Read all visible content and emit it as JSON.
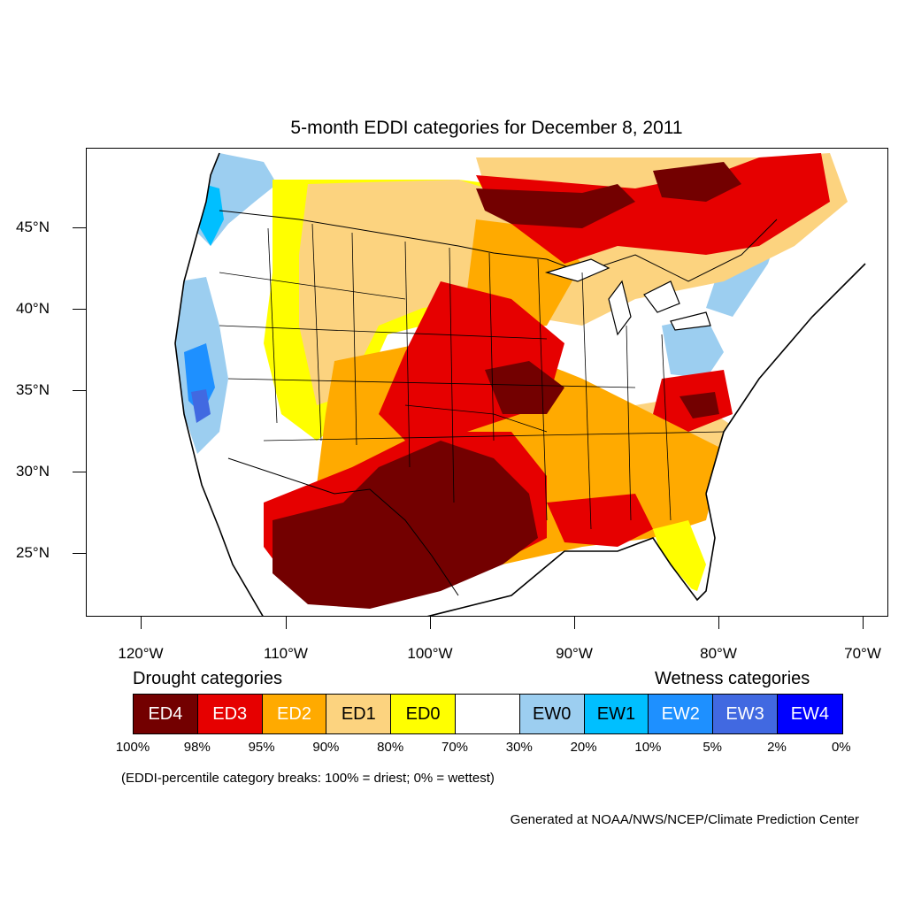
{
  "title": "5-month EDDI categories for December 8, 2011",
  "map": {
    "lat_labels": [
      "45°N",
      "40°N",
      "35°N",
      "30°N",
      "25°N"
    ],
    "lon_labels": [
      "120°W",
      "110°W",
      "100°W",
      "90°W",
      "80°W",
      "70°W"
    ]
  },
  "legend": {
    "drought_heading": "Drought categories",
    "wetness_heading": "Wetness categories",
    "categories": [
      {
        "label": "ED4",
        "color": "#730000",
        "text_color": "#ffffff"
      },
      {
        "label": "ED3",
        "color": "#e60000",
        "text_color": "#ffffff"
      },
      {
        "label": "ED2",
        "color": "#ffaa00",
        "text_color": "#ffffff"
      },
      {
        "label": "ED1",
        "color": "#fcd37f",
        "text_color": "#000000"
      },
      {
        "label": "ED0",
        "color": "#ffff00",
        "text_color": "#000000"
      },
      {
        "label": "",
        "color": "#ffffff",
        "text_color": "#000000"
      },
      {
        "label": "EW0",
        "color": "#9ccef0",
        "text_color": "#000000"
      },
      {
        "label": "EW1",
        "color": "#00bfff",
        "text_color": "#000000"
      },
      {
        "label": "EW2",
        "color": "#1e90ff",
        "text_color": "#ffffff"
      },
      {
        "label": "EW3",
        "color": "#4169e1",
        "text_color": "#ffffff"
      },
      {
        "label": "EW4",
        "color": "#0000ff",
        "text_color": "#ffffff"
      }
    ],
    "percentiles": [
      "100%",
      "98%",
      "95%",
      "90%",
      "80%",
      "70%",
      "30%",
      "20%",
      "10%",
      "5%",
      "2%",
      "0%"
    ]
  },
  "note": "(EDDI-percentile category breaks: 100% = driest; 0% = wettest)",
  "credit": "Generated at NOAA/NWS/NCEP/Climate Prediction Center"
}
